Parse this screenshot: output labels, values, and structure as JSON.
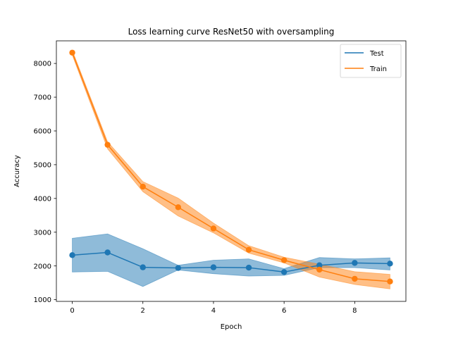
{
  "chart_data": {
    "type": "line",
    "title": "Loss learning curve ResNet50 with oversampling",
    "xlabel": "Epoch",
    "ylabel": "Accuracy",
    "xlim": [
      -0.45,
      9.45
    ],
    "ylim": [
      950,
      8670
    ],
    "x_ticks": [
      0,
      2,
      4,
      6,
      8
    ],
    "y_ticks": [
      1000,
      2000,
      3000,
      4000,
      5000,
      6000,
      7000,
      8000
    ],
    "legend_position": "top-right",
    "grid": false,
    "x": [
      0,
      1,
      2,
      3,
      4,
      5,
      6,
      7,
      8,
      9
    ],
    "series": [
      {
        "name": "Test",
        "color": "#1f77b4",
        "values": [
          2320,
          2400,
          1960,
          1940,
          1960,
          1950,
          1820,
          2020,
          2090,
          2070
        ],
        "lower": [
          1820,
          1840,
          1390,
          1880,
          1770,
          1700,
          1720,
          1950,
          1950,
          1880
        ],
        "upper": [
          2820,
          2950,
          2510,
          2020,
          2170,
          2210,
          1920,
          2250,
          2210,
          2240
        ]
      },
      {
        "name": "Train",
        "color": "#ff7f0e",
        "values": [
          8320,
          5590,
          4350,
          3740,
          3110,
          2480,
          2170,
          1890,
          1620,
          1540
        ],
        "lower": [
          8250,
          5470,
          4200,
          3480,
          2980,
          2380,
          2090,
          1670,
          1450,
          1320
        ],
        "upper": [
          8390,
          5680,
          4500,
          4010,
          3270,
          2600,
          2260,
          2050,
          1830,
          1750
        ]
      }
    ]
  }
}
